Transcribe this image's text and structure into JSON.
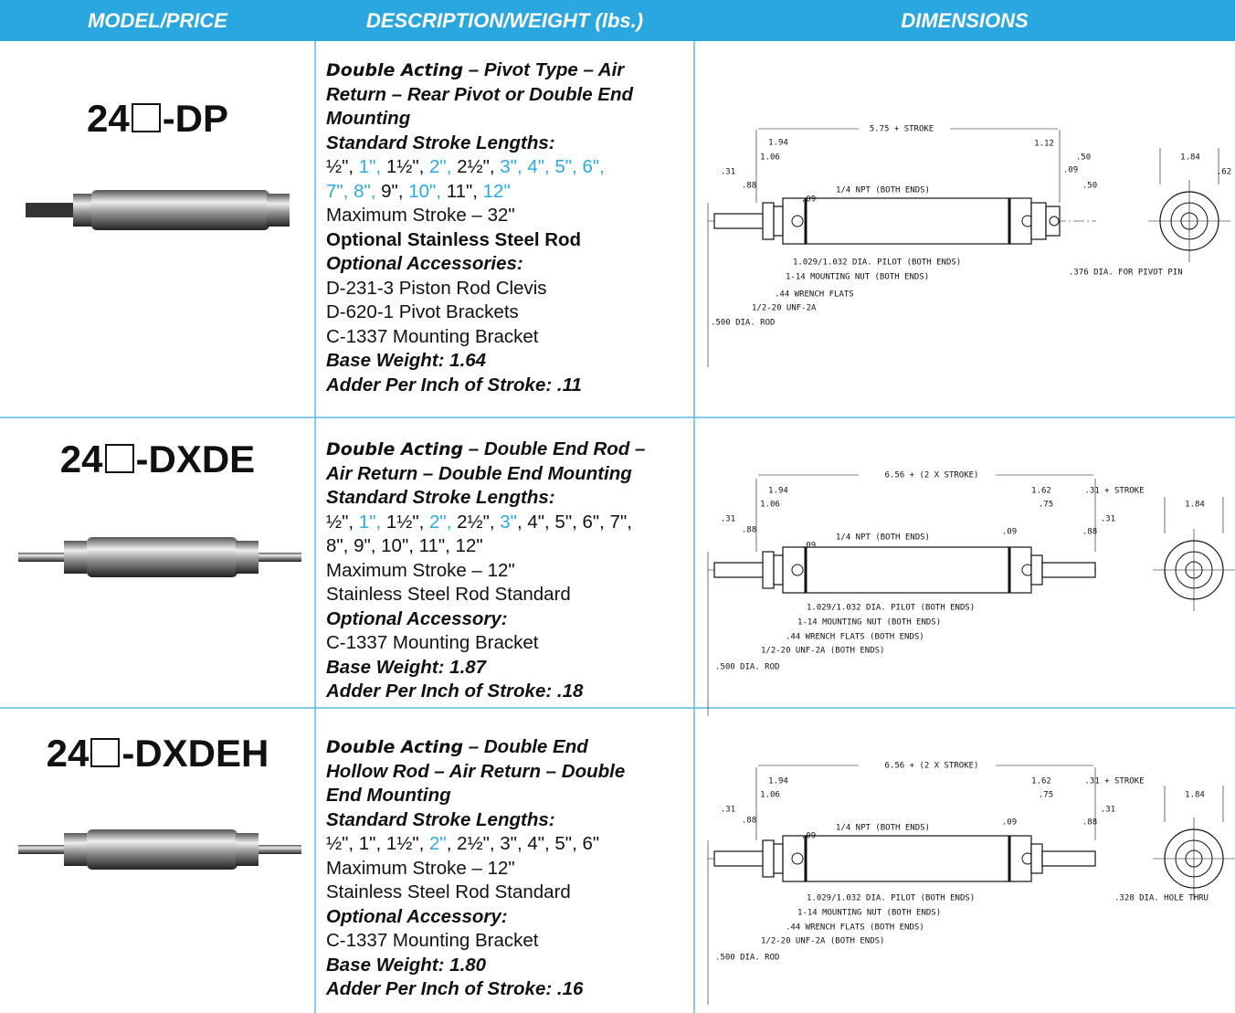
{
  "header": {
    "columns": [
      "MODEL/PRICE",
      "DESCRIPTION/WEIGHT (lbs.)",
      "DIMENSIONS"
    ]
  },
  "rows": [
    {
      "model": {
        "prefix": "24",
        "suffix": "-DP"
      },
      "description": [
        [
          {
            "text": "Double Acting",
            "style": "bi"
          },
          {
            "text": " – Pivot Type – Air",
            "style": "i"
          }
        ],
        [
          {
            "text": "Return – Rear Pivot or Double End",
            "style": "i"
          }
        ],
        [
          {
            "text": "Mounting",
            "style": "i"
          }
        ],
        [
          {
            "text": "Standard Stroke Lengths:",
            "style": "i"
          }
        ],
        [
          {
            "text": "½\", ",
            "style": "r"
          },
          {
            "text": "1\", ",
            "style": "hl"
          },
          {
            "text": "1½\", ",
            "style": "r"
          },
          {
            "text": "2\", ",
            "style": "hl"
          },
          {
            "text": "2½\", ",
            "style": "r"
          },
          {
            "text": "3\", 4\", 5\", 6\",",
            "style": "hl"
          }
        ],
        [
          {
            "text": "7\", 8\", ",
            "style": "hl"
          },
          {
            "text": "9\", ",
            "style": "r"
          },
          {
            "text": "10\", ",
            "style": "hl"
          },
          {
            "text": "11\", ",
            "style": "r"
          },
          {
            "text": "12\"",
            "style": "hl"
          }
        ],
        [
          {
            "text": "Maximum Stroke – 32\"",
            "style": "r"
          }
        ],
        [
          {
            "text": "Optional Stainless Steel Rod",
            "style": "b"
          }
        ],
        [
          {
            "text": "Optional Accessories:",
            "style": "i"
          }
        ],
        [
          {
            "text": "D-231-3 Piston Rod Clevis",
            "style": "r"
          }
        ],
        [
          {
            "text": "D-620-1 Pivot Brackets",
            "style": "r"
          }
        ],
        [
          {
            "text": "C-1337 Mounting Bracket",
            "style": "r"
          }
        ],
        [
          {
            "text": "Base Weight:  1.64",
            "style": "i"
          }
        ],
        [
          {
            "text": "Adder Per Inch of Stroke:  .11",
            "style": "i"
          }
        ]
      ],
      "dimensions": [
        "5.75 + STROKE",
        "1.94",
        "1.06",
        ".31",
        ".88",
        ".09",
        "1/4 NPT (BOTH ENDS)",
        "1.12",
        ".50",
        ".09",
        ".50",
        "1.84",
        ".62",
        "1.029/1.032 DIA. PILOT (BOTH ENDS)",
        "1-14 MOUNTING NUT (BOTH ENDS)",
        ".44 WRENCH FLATS",
        "1/2-20 UNF-2A",
        ".500 DIA. ROD",
        ".376 DIA. FOR PIVOT PIN"
      ]
    },
    {
      "model": {
        "prefix": "24",
        "suffix": "-DXDE"
      },
      "description": [
        [
          {
            "text": "Double Acting",
            "style": "bi"
          },
          {
            "text": " – Double End Rod –",
            "style": "i"
          }
        ],
        [
          {
            "text": "Air Return – Double End Mounting",
            "style": "i"
          }
        ],
        [
          {
            "text": "Standard Stroke Lengths:",
            "style": "i"
          }
        ],
        [
          {
            "text": "½\", ",
            "style": "r"
          },
          {
            "text": "1\", ",
            "style": "hl"
          },
          {
            "text": "1½\", ",
            "style": "r"
          },
          {
            "text": "2\", ",
            "style": "hl"
          },
          {
            "text": "2½\", ",
            "style": "r"
          },
          {
            "text": "3\"",
            "style": "hl"
          },
          {
            "text": ", 4\", 5\", 6\", 7\",",
            "style": "r"
          }
        ],
        [
          {
            "text": "8\", 9\", 10\", 11\", 12\"",
            "style": "r"
          }
        ],
        [
          {
            "text": "Maximum Stroke – 12\"",
            "style": "r"
          }
        ],
        [
          {
            "text": "Stainless Steel Rod Standard",
            "style": "r"
          }
        ],
        [
          {
            "text": "Optional Accessory:",
            "style": "i"
          }
        ],
        [
          {
            "text": "C-1337 Mounting Bracket",
            "style": "r"
          }
        ],
        [
          {
            "text": "Base Weight:  1.87",
            "style": "i"
          }
        ],
        [
          {
            "text": "Adder Per Inch of Stroke:  .18",
            "style": "i"
          }
        ]
      ],
      "dimensions": [
        "6.56 + (2 X STROKE)",
        "1.94",
        "1.06",
        ".31",
        ".88",
        ".09",
        "1/4 NPT (BOTH ENDS)",
        "1.62",
        ".31 + STROKE",
        ".75",
        ".31",
        ".09",
        ".88",
        "1.84",
        "1.029/1.032 DIA. PILOT (BOTH ENDS)",
        "1-14 MOUNTING NUT (BOTH ENDS)",
        ".44 WRENCH FLATS (BOTH ENDS)",
        "1/2-20 UNF-2A (BOTH ENDS)",
        ".500 DIA. ROD"
      ]
    },
    {
      "model": {
        "prefix": "24",
        "suffix": "-DXDEH"
      },
      "description": [
        [
          {
            "text": "Double Acting",
            "style": "bi"
          },
          {
            "text": " – Double End",
            "style": "i"
          }
        ],
        [
          {
            "text": "Hollow Rod – Air Return – Double",
            "style": "i"
          }
        ],
        [
          {
            "text": "End Mounting",
            "style": "i"
          }
        ],
        [
          {
            "text": "Standard Stroke Lengths:",
            "style": "i"
          }
        ],
        [
          {
            "text": "½\", 1\", 1½\", ",
            "style": "r"
          },
          {
            "text": "2\"",
            "style": "hl"
          },
          {
            "text": ", 2½\", 3\", 4\", 5\", 6\"",
            "style": "r"
          }
        ],
        [
          {
            "text": "Maximum Stroke – 12\"",
            "style": "r"
          }
        ],
        [
          {
            "text": "Stainless Steel Rod Standard",
            "style": "r"
          }
        ],
        [
          {
            "text": "Optional Accessory:",
            "style": "i"
          }
        ],
        [
          {
            "text": "C-1337 Mounting Bracket",
            "style": "r"
          }
        ],
        [
          {
            "text": "Base Weight:  1.80",
            "style": "i"
          }
        ],
        [
          {
            "text": "Adder Per Inch of Stroke:  .16",
            "style": "i"
          }
        ]
      ],
      "dimensions": [
        "6.56 + (2 X STROKE)",
        "1.94",
        "1.06",
        ".31",
        ".88",
        ".09",
        "1/4 NPT (BOTH ENDS)",
        "1.62",
        ".31 + STROKE",
        ".75",
        ".31",
        ".09",
        ".88",
        "1.84",
        "1.029/1.032 DIA. PILOT (BOTH ENDS)",
        "1-14 MOUNTING NUT (BOTH ENDS)",
        ".44 WRENCH FLATS (BOTH ENDS)",
        "1/2-20 UNF-2A (BOTH ENDS)",
        ".500 DIA. ROD",
        ".328 DIA. HOLE THRU"
      ]
    }
  ]
}
